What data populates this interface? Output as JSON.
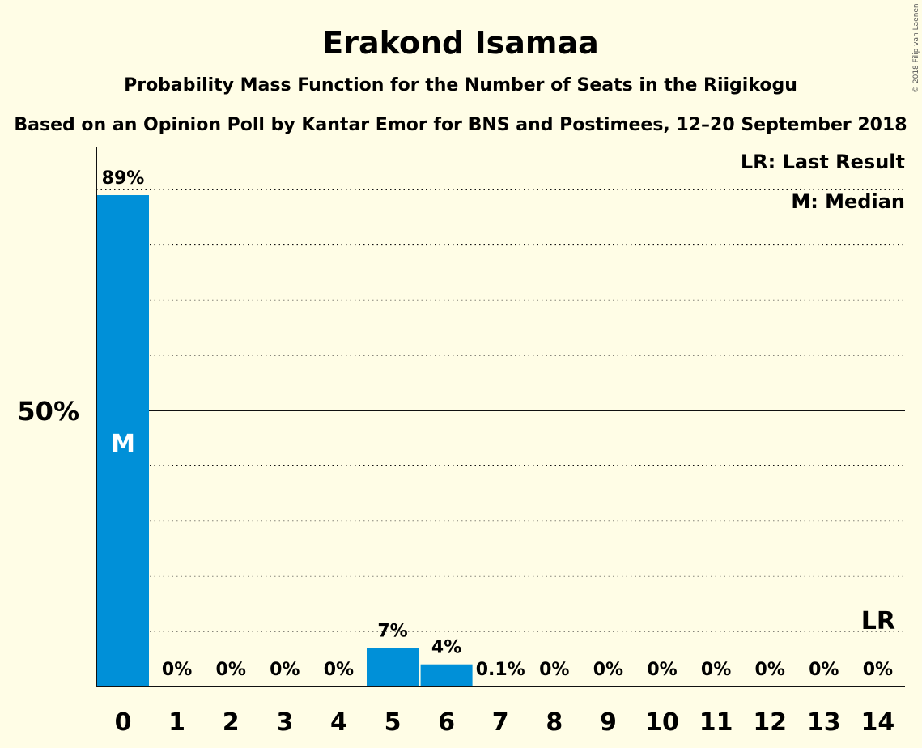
{
  "chart_data": {
    "type": "bar",
    "title": "Erakond Isamaa",
    "subtitle": "Probability Mass Function for the Number of Seats in the Riigikogu",
    "source": "Based on an Opinion Poll by Kantar Emor for BNS and Postimees, 12–20 September 2018",
    "copyright": "© 2018 Filip van Laenen",
    "categories": [
      "0",
      "1",
      "2",
      "3",
      "4",
      "5",
      "6",
      "7",
      "8",
      "9",
      "10",
      "11",
      "12",
      "13",
      "14"
    ],
    "values": [
      89,
      0,
      0,
      0,
      0,
      7,
      4,
      0.1,
      0,
      0,
      0,
      0,
      0,
      0,
      0
    ],
    "value_labels": [
      "89%",
      "0%",
      "0%",
      "0%",
      "0%",
      "7%",
      "4%",
      "0.1%",
      "0%",
      "0%",
      "0%",
      "0%",
      "0%",
      "0%",
      "0%"
    ],
    "y_unit": "%",
    "ylim": [
      0,
      100
    ],
    "yticks": [
      {
        "value": 50,
        "label": "50%"
      }
    ],
    "gridlines_dotted": [
      10,
      20,
      30,
      40,
      60,
      70,
      80,
      90
    ],
    "gridline_solid": 50,
    "median_seat": 0,
    "median_label": "M",
    "last_result_seat": 14,
    "last_result_label": "LR",
    "legend": {
      "position": "top-right",
      "entries": [
        "LR: Last Result",
        "M: Median"
      ]
    },
    "colors": {
      "bar": "#0090d8",
      "background": "#fffde6",
      "axis": "#111111"
    }
  }
}
